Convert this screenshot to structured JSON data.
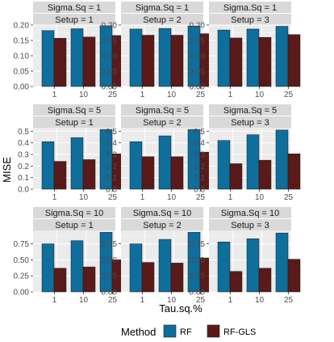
{
  "chart_data": {
    "type": "bar",
    "ylabel": "MISE",
    "xlabel": "Tau.sq.%",
    "categories": [
      "1",
      "10",
      "25"
    ],
    "legend": {
      "title": "Method",
      "position": "bottom",
      "items": [
        {
          "name": "RF",
          "color": "#0e6e9c"
        },
        {
          "name": "RF-GLS",
          "color": "#5a1a1a"
        }
      ]
    },
    "strip_color": "#d9d9d9",
    "panel_background": "#ebebeb",
    "rows": [
      {
        "ylim": [
          0,
          0.2
        ],
        "ticks": [
          0.0,
          0.05,
          0.1,
          0.15,
          0.2
        ],
        "tick_labels": [
          "0.00",
          "0.05",
          "0.10",
          "0.15",
          "0.20"
        ]
      },
      {
        "ylim": [
          0,
          0.53
        ],
        "ticks": [
          0.0,
          0.1,
          0.2,
          0.3,
          0.4,
          0.5
        ],
        "tick_labels": [
          "0.0",
          "0.1",
          "0.2",
          "0.3",
          "0.4",
          "0.5"
        ]
      },
      {
        "ylim": [
          0,
          0.96
        ],
        "ticks": [
          0.0,
          0.25,
          0.5,
          0.75
        ],
        "tick_labels": [
          "0.00",
          "0.25",
          "0.50",
          "0.75"
        ]
      }
    ],
    "panels": [
      {
        "row": 0,
        "col": 0,
        "strip1": "Sigma.Sq = 1",
        "strip2": "Setup = 1",
        "series": [
          {
            "name": "RF",
            "values": [
              0.182,
              0.188,
              0.198
            ]
          },
          {
            "name": "RF-GLS",
            "values": [
              0.157,
              0.161,
              0.166
            ]
          }
        ]
      },
      {
        "row": 0,
        "col": 1,
        "strip1": "Sigma.Sq = 1",
        "strip2": "Setup = 2",
        "series": [
          {
            "name": "RF",
            "values": [
              0.187,
              0.189,
              0.197
            ]
          },
          {
            "name": "RF-GLS",
            "values": [
              0.167,
              0.167,
              0.172
            ]
          }
        ]
      },
      {
        "row": 0,
        "col": 2,
        "strip1": "Sigma.Sq = 1",
        "strip2": "Setup = 3",
        "series": [
          {
            "name": "RF",
            "values": [
              0.184,
              0.187,
              0.196
            ]
          },
          {
            "name": "RF-GLS",
            "values": [
              0.158,
              0.16,
              0.169
            ]
          }
        ]
      },
      {
        "row": 1,
        "col": 0,
        "strip1": "Sigma.Sq = 5",
        "strip2": "Setup = 1",
        "series": [
          {
            "name": "RF",
            "values": [
              0.41,
              0.445,
              0.515
            ]
          },
          {
            "name": "RF-GLS",
            "values": [
              0.24,
              0.255,
              0.305
            ]
          }
        ]
      },
      {
        "row": 1,
        "col": 1,
        "strip1": "Sigma.Sq = 5",
        "strip2": "Setup = 2",
        "series": [
          {
            "name": "RF",
            "values": [
              0.41,
              0.46,
              0.515
            ]
          },
          {
            "name": "RF-GLS",
            "values": [
              0.28,
              0.28,
              0.32
            ]
          }
        ]
      },
      {
        "row": 1,
        "col": 2,
        "strip1": "Sigma.Sq = 5",
        "strip2": "Setup = 3",
        "series": [
          {
            "name": "RF",
            "values": [
              0.42,
              0.47,
              0.51
            ]
          },
          {
            "name": "RF-GLS",
            "values": [
              0.22,
              0.25,
              0.305
            ]
          }
        ]
      },
      {
        "row": 2,
        "col": 0,
        "strip1": "Sigma.Sq = 10",
        "strip2": "Setup = 1",
        "series": [
          {
            "name": "RF",
            "values": [
              0.75,
              0.8,
              0.93
            ]
          },
          {
            "name": "RF-GLS",
            "values": [
              0.37,
              0.39,
              0.5
            ]
          }
        ]
      },
      {
        "row": 2,
        "col": 1,
        "strip1": "Sigma.Sq = 10",
        "strip2": "Setup = 2",
        "series": [
          {
            "name": "RF",
            "values": [
              0.75,
              0.82,
              0.93
            ]
          },
          {
            "name": "RF-GLS",
            "values": [
              0.46,
              0.45,
              0.53
            ]
          }
        ]
      },
      {
        "row": 2,
        "col": 2,
        "strip1": "Sigma.Sq = 10",
        "strip2": "Setup = 3",
        "series": [
          {
            "name": "RF",
            "values": [
              0.78,
              0.83,
              0.92
            ]
          },
          {
            "name": "RF-GLS",
            "values": [
              0.32,
              0.37,
              0.51
            ]
          }
        ]
      }
    ]
  }
}
